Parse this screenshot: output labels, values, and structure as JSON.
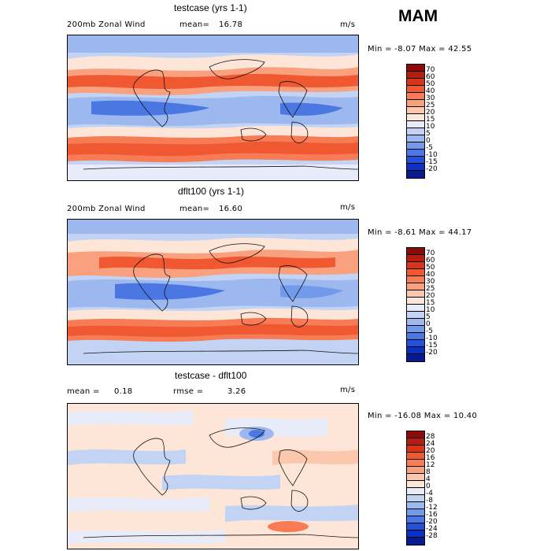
{
  "season": "MAM",
  "panels": [
    {
      "title": "testcase (yrs 1-1)",
      "left_label": "200mb Zonal Wind",
      "stat1_label": "mean=",
      "stat1_value": "16.78",
      "stat2_label": "",
      "stat2_value": "",
      "units": "m/s",
      "minmax": "Min =  -8.07 Max =  42.55",
      "colorbar_labels": [
        "70",
        "60",
        "50",
        "40",
        "30",
        "25",
        "20",
        "15",
        "10",
        "5",
        "0",
        "-5",
        "-10",
        "-15",
        "-20"
      ],
      "colors": [
        "#8b0a0a",
        "#b51d12",
        "#d83417",
        "#ef5830",
        "#f77b55",
        "#f9a07f",
        "#fbc7ad",
        "#fde6d8",
        "#e8ebf8",
        "#c3d3f4",
        "#9cb8ef",
        "#729aea",
        "#4a77e2",
        "#2352d8",
        "#0c2fc4",
        "#071a90"
      ]
    },
    {
      "title": "dflt100 (yrs 1-1)",
      "left_label": "200mb Zonal Wind",
      "stat1_label": "mean=",
      "stat1_value": "16.60",
      "stat2_label": "",
      "stat2_value": "",
      "units": "m/s",
      "minmax": "Min =  -8.61 Max =  44.17",
      "colorbar_labels": [
        "70",
        "60",
        "50",
        "40",
        "30",
        "25",
        "20",
        "15",
        "10",
        "5",
        "0",
        "-5",
        "-10",
        "-15",
        "-20"
      ],
      "colors": [
        "#8b0a0a",
        "#b51d12",
        "#d83417",
        "#ef5830",
        "#f77b55",
        "#f9a07f",
        "#fbc7ad",
        "#fde6d8",
        "#e8ebf8",
        "#c3d3f4",
        "#9cb8ef",
        "#729aea",
        "#4a77e2",
        "#2352d8",
        "#0c2fc4",
        "#071a90"
      ]
    },
    {
      "title": "testcase - dflt100",
      "left_label": "mean =",
      "stat1_label": "",
      "stat1_value": "0.18",
      "stat2_label": "rmse =",
      "stat2_value": "3.26",
      "units": "m/s",
      "minmax": "Min = -16.08 Max =  10.40",
      "colorbar_labels": [
        "28",
        "24",
        "20",
        "16",
        "12",
        "8",
        "4",
        "0",
        "-4",
        "-8",
        "-12",
        "-16",
        "-20",
        "-24",
        "-28"
      ],
      "colors": [
        "#8b0a0a",
        "#b51d12",
        "#d83417",
        "#ef5830",
        "#f77b55",
        "#f9a07f",
        "#fbc7ad",
        "#fde6d8",
        "#e8ebf8",
        "#c3d3f4",
        "#9cb8ef",
        "#729aea",
        "#4a77e2",
        "#2352d8",
        "#0c2fc4",
        "#071a90"
      ]
    }
  ]
}
